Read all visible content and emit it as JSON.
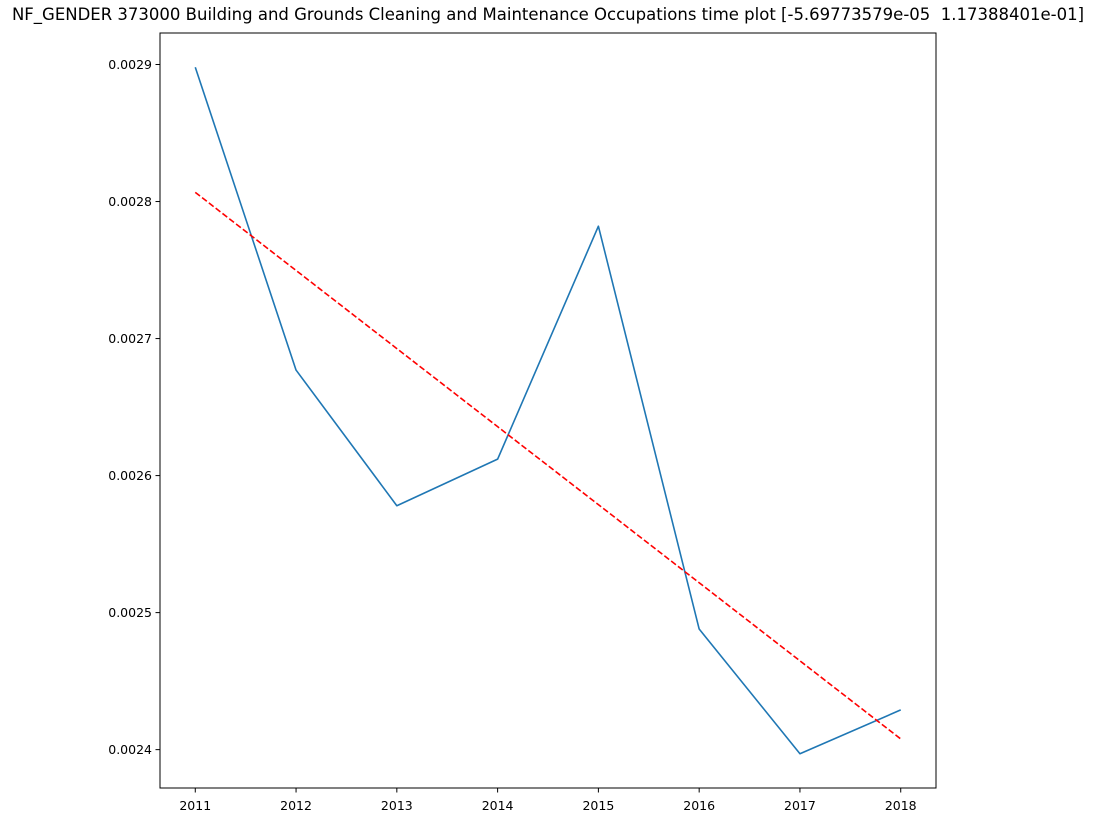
{
  "chart_data": {
    "type": "line",
    "title": "NF_GENDER 373000 Building and Grounds Cleaning and Maintenance Occupations time plot [-5.69773579e-05  1.17388401e-01]",
    "xlabel": "",
    "ylabel": "",
    "x": [
      2011,
      2012,
      2013,
      2014,
      2015,
      2016,
      2017,
      2018
    ],
    "series": [
      {
        "values": [
          0.002898,
          0.002677,
          0.002578,
          0.002612,
          0.002782,
          0.002488,
          0.002397,
          0.002429
        ],
        "color": "#1f77b4",
        "style": "solid"
      },
      {
        "values": [
          0.0028067,
          0.0027497,
          0.0026927,
          0.0026357,
          0.0025788,
          0.0025218,
          0.0024648,
          0.0024078
        ],
        "color": "#ff0000",
        "style": "dashed"
      }
    ],
    "xticks": [
      "2011",
      "2012",
      "2013",
      "2014",
      "2015",
      "2016",
      "2017",
      "2018"
    ],
    "yticks": [
      "0.0024",
      "0.0025",
      "0.0026",
      "0.0027",
      "0.0028",
      "0.0029"
    ],
    "xlim": [
      2010.65,
      2018.35
    ],
    "ylim": [
      0.002372,
      0.002923
    ],
    "grid": false,
    "legend": "none"
  }
}
